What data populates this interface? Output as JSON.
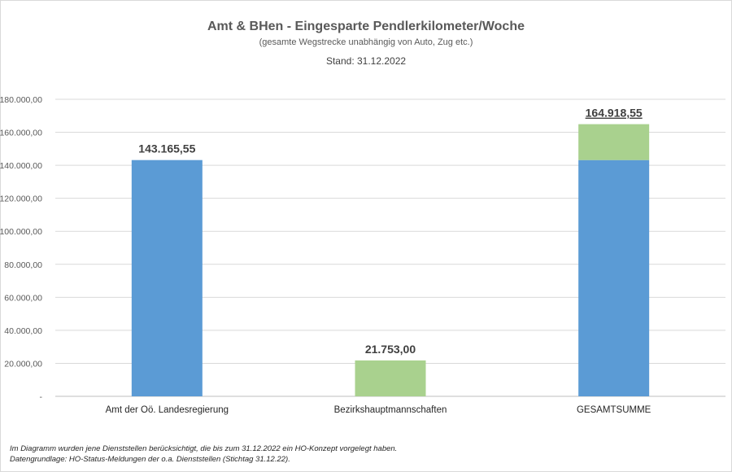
{
  "chart_data": {
    "type": "bar",
    "stacked": true,
    "title": "Amt & BHen - Eingesparte Pendlerkilometer/Woche",
    "subtitle": "(gesamte Wegstrecke unabhängig von Auto, Zug etc.)",
    "stand": "Stand: 31.12.2022",
    "categories": [
      "Amt der Oö. Landesregierung",
      "Bezirkshauptmannschaften",
      "GESAMTSUMME"
    ],
    "series": [
      {
        "name": "Amt der Oö. Landesregierung",
        "color": "#5b9bd5",
        "values": [
          143165.55,
          0,
          143165.55
        ]
      },
      {
        "name": "Bezirkshauptmannschaften",
        "color": "#a9d18e",
        "values": [
          0,
          21753.0,
          21753.0
        ]
      }
    ],
    "data_labels": [
      "143.165,55",
      "21.753,00",
      "164.918,55"
    ],
    "ylim": [
      0,
      180000
    ],
    "yticks": [
      0,
      20000,
      40000,
      60000,
      80000,
      100000,
      120000,
      140000,
      160000,
      180000
    ],
    "ytick_labels": [
      "-",
      "20.000,00",
      "40.000,00",
      "60.000,00",
      "80.000,00",
      "100.000,00",
      "120.000,00",
      "140.000,00",
      "160.000,00",
      "180.000,00"
    ],
    "grid": true,
    "xlabel": "",
    "ylabel": ""
  },
  "footnotes": {
    "line1": "Im Diagramm wurden jene Dienststellen berücksichtigt, die bis zum 31.12.2022 ein HO-Konzept vorgelegt haben.",
    "line2": "Datengrundlage: HO-Status-Meldungen der o.a. Dienststellen (Stichtag 31.12.22)."
  }
}
